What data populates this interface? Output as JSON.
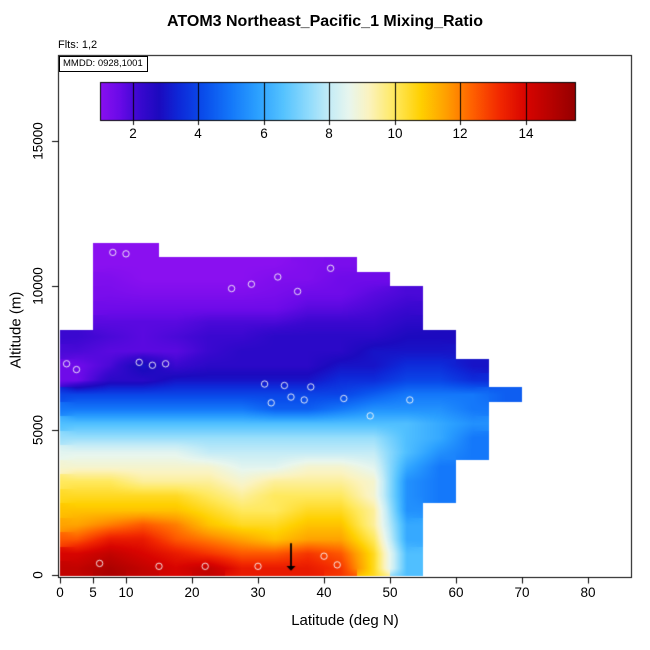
{
  "title": "ATOM3 Northeast_Pacific_1 Mixing_Ratio",
  "flts_label": "Flts: 1,2",
  "mmdd_label": "MMDD: 0928,1001",
  "axes": {
    "x": {
      "label": "Latitude (deg N)",
      "ticks": [
        "0",
        "5",
        "10",
        "20",
        "30",
        "40",
        "50",
        "60",
        "70",
        "80"
      ]
    },
    "y": {
      "label": "Altitude (m)",
      "ticks": [
        "0",
        "5000",
        "10000",
        "15000"
      ]
    },
    "colorbar_ticks": [
      "2",
      "4",
      "6",
      "8",
      "10",
      "12",
      "14"
    ]
  },
  "chart_data": {
    "type": "heatmap",
    "title": "ATOM3 Northeast_Pacific_1 Mixing_Ratio",
    "xlabel": "Latitude (deg N)",
    "ylabel": "Altitude (m)",
    "value_label": "Mixing_Ratio",
    "xlim": [
      0,
      86
    ],
    "ylim": [
      0,
      18000
    ],
    "x_tick_values": [
      0,
      5,
      10,
      20,
      30,
      40,
      50,
      60,
      70,
      80
    ],
    "y_tick_values": [
      0,
      5000,
      10000,
      15000
    ],
    "colorbar_ticks": [
      2,
      4,
      6,
      8,
      10,
      12,
      14
    ],
    "colorbar_range": [
      1,
      15.5
    ],
    "lat_bin_edges": [
      0,
      5,
      10,
      15,
      20,
      25,
      30,
      35,
      40,
      45,
      50,
      55,
      60,
      65,
      70,
      75
    ],
    "alt_bin_edges": [
      0,
      500,
      1000,
      1500,
      2000,
      2500,
      3000,
      3500,
      4000,
      4500,
      5000,
      5500,
      6000,
      6500,
      7000,
      7500,
      8000,
      8500,
      9000,
      9500,
      10000,
      10500,
      11000,
      11500
    ],
    "grid_rows_bottom_to_top": [
      [
        14.5,
        15,
        14.5,
        14,
        14.5,
        13.5,
        13.5,
        13.5,
        13,
        10.5,
        6.5,
        null,
        null,
        null,
        null
      ],
      [
        14,
        14.5,
        14,
        13.5,
        13,
        12.5,
        12.5,
        13,
        12.5,
        10.5,
        6.5,
        null,
        null,
        null,
        null
      ],
      [
        12.5,
        13.5,
        13.5,
        12.5,
        12,
        11.5,
        11,
        11.5,
        11.5,
        10,
        6,
        null,
        null,
        null,
        null
      ],
      [
        11.5,
        12,
        12.5,
        12,
        11,
        10.5,
        10.5,
        11,
        11,
        9.5,
        6,
        null,
        null,
        null,
        null
      ],
      [
        11,
        11,
        11,
        11,
        10.5,
        10,
        10,
        10.5,
        10.5,
        9.5,
        5.5,
        null,
        null,
        null,
        null
      ],
      [
        10.5,
        10.5,
        10.5,
        10.5,
        10,
        9.5,
        10,
        10,
        10,
        9,
        5.5,
        5,
        null,
        null,
        null
      ],
      [
        10,
        10,
        9.5,
        9.5,
        9.5,
        9,
        9.5,
        9.5,
        9.5,
        9,
        5.5,
        5,
        null,
        null,
        null
      ],
      [
        9,
        9,
        9,
        9,
        9,
        8.5,
        8.5,
        9,
        9,
        8.5,
        6,
        5,
        null,
        null,
        null
      ],
      [
        8.5,
        8.5,
        8.5,
        8.5,
        8,
        8,
        8,
        8,
        8,
        8,
        6.5,
        5.5,
        5,
        null,
        null
      ],
      [
        7.5,
        7.5,
        7.5,
        7.5,
        7.5,
        7.5,
        7.5,
        7.5,
        7.5,
        7.5,
        6.5,
        6,
        5,
        null,
        null
      ],
      [
        6.5,
        6.5,
        6.5,
        6.5,
        6.5,
        6.5,
        6.5,
        6.5,
        6.5,
        6.5,
        6.5,
        6,
        5.5,
        null,
        null
      ],
      [
        5,
        5,
        5,
        5,
        5,
        5,
        4.5,
        4.5,
        5,
        5.5,
        5.5,
        5.5,
        5,
        null,
        null
      ],
      [
        4,
        4,
        4,
        4,
        4,
        4,
        4,
        4,
        4,
        4.5,
        5,
        5,
        5,
        4.5,
        null
      ],
      [
        1.5,
        2.5,
        2.5,
        3,
        3,
        3,
        3,
        3,
        3.5,
        3.5,
        4,
        4,
        3.5,
        null,
        null
      ],
      [
        1.5,
        2,
        3,
        2.2,
        2.5,
        2.5,
        2.5,
        2.5,
        3,
        3,
        3.5,
        3.5,
        3,
        null,
        null
      ],
      [
        2,
        1.8,
        1.8,
        1.8,
        2.2,
        2.5,
        2.5,
        2.5,
        2.5,
        3,
        3,
        3,
        null,
        null,
        null
      ],
      [
        2.2,
        2,
        1.8,
        2,
        2.2,
        2.2,
        2.5,
        2.5,
        2.5,
        2.5,
        2.8,
        2.8,
        null,
        null,
        null
      ],
      [
        null,
        1.8,
        1.8,
        1.8,
        2,
        2,
        2,
        2.2,
        2.2,
        2.2,
        2.5,
        null,
        null,
        null,
        null
      ],
      [
        null,
        1.5,
        1.5,
        1.5,
        1.5,
        1.5,
        1.5,
        1.8,
        1.8,
        2,
        2.2,
        null,
        null,
        null,
        null
      ],
      [
        null,
        1.3,
        1.2,
        1.2,
        1.2,
        1.2,
        1.3,
        1.5,
        1.5,
        1.8,
        2,
        null,
        null,
        null,
        null
      ],
      [
        null,
        1.2,
        1,
        1,
        1,
        1,
        1.2,
        1.2,
        1.5,
        1.5,
        null,
        null,
        null,
        null,
        null
      ],
      [
        null,
        1,
        1,
        1,
        1,
        1,
        1,
        1.2,
        1.3,
        null,
        null,
        null,
        null,
        null,
        null
      ],
      [
        null,
        1,
        1,
        null,
        null,
        null,
        null,
        null,
        null,
        null,
        null,
        null,
        null,
        null,
        null
      ]
    ],
    "colormap": [
      {
        "value": 1.0,
        "color": "#8A10F0"
      },
      {
        "value": 1.6,
        "color": "#6A0AE8"
      },
      {
        "value": 2.2,
        "color": "#3A08D0"
      },
      {
        "value": 2.8,
        "color": "#1C0ABF"
      },
      {
        "value": 3.4,
        "color": "#0E28D8"
      },
      {
        "value": 4.2,
        "color": "#0A4FEC"
      },
      {
        "value": 5.0,
        "color": "#1478FA"
      },
      {
        "value": 5.8,
        "color": "#2BA0FF"
      },
      {
        "value": 6.6,
        "color": "#55C3FF"
      },
      {
        "value": 7.4,
        "color": "#92DCFC"
      },
      {
        "value": 8.0,
        "color": "#C4ECF7"
      },
      {
        "value": 8.6,
        "color": "#E8F6EE"
      },
      {
        "value": 9.2,
        "color": "#FBF3C0"
      },
      {
        "value": 10.0,
        "color": "#FFE95E"
      },
      {
        "value": 10.8,
        "color": "#FFD000"
      },
      {
        "value": 11.6,
        "color": "#FF9D00"
      },
      {
        "value": 12.4,
        "color": "#FF5E00"
      },
      {
        "value": 13.2,
        "color": "#F22800"
      },
      {
        "value": 14.0,
        "color": "#D80400"
      },
      {
        "value": 15.5,
        "color": "#960000"
      }
    ],
    "markers": [
      [
        8,
        11150
      ],
      [
        10,
        11100
      ],
      [
        41,
        10600
      ],
      [
        33,
        10300
      ],
      [
        29,
        10050
      ],
      [
        26,
        9900
      ],
      [
        36,
        9800
      ],
      [
        1,
        7300
      ],
      [
        2.5,
        7100
      ],
      [
        12,
        7350
      ],
      [
        14,
        7250
      ],
      [
        16,
        7300
      ],
      [
        31,
        6600
      ],
      [
        34,
        6550
      ],
      [
        38,
        6500
      ],
      [
        35,
        6150
      ],
      [
        37,
        6050
      ],
      [
        32,
        5950
      ],
      [
        43,
        6100
      ],
      [
        47,
        5500
      ],
      [
        53,
        6050
      ],
      [
        6,
        400
      ],
      [
        15,
        300
      ],
      [
        22,
        300
      ],
      [
        30,
        300
      ],
      [
        40,
        650
      ],
      [
        42,
        350
      ]
    ],
    "arrow": {
      "lat": 35,
      "alt_from": 1100,
      "alt_to": 150
    }
  }
}
